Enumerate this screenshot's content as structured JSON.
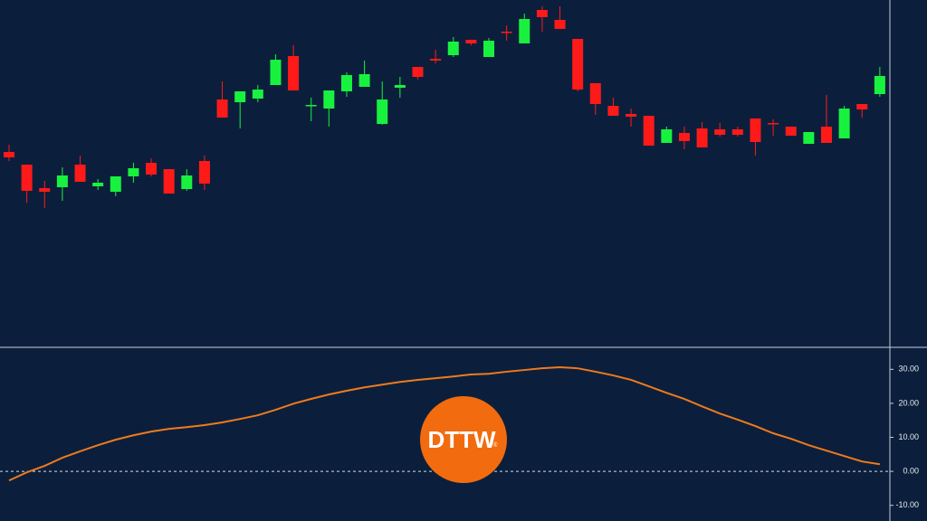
{
  "chart_data": [
    {
      "type": "candlestick",
      "categories": [
        null,
        null,
        null,
        null,
        null,
        null,
        null,
        null,
        null,
        null,
        null,
        null,
        null,
        null,
        null,
        null,
        null,
        null,
        null,
        null,
        null,
        null,
        null,
        null,
        null,
        null,
        null,
        null,
        null,
        null,
        null,
        null,
        null,
        null,
        null,
        null,
        null,
        null,
        null,
        null,
        null,
        null,
        null,
        null,
        null,
        null,
        null,
        null,
        null,
        null
      ],
      "open": [
        232,
        218,
        192,
        193,
        218,
        194,
        188,
        205,
        220,
        213,
        191,
        222,
        290,
        287,
        291,
        306,
        338,
        283,
        280,
        299,
        304,
        263,
        303,
        326,
        335,
        339,
        356,
        337,
        365,
        352,
        389,
        378,
        357,
        308,
        283,
        274,
        272,
        242,
        253,
        258,
        257,
        257,
        269,
        264,
        260,
        241,
        260,
        247,
        285,
        296
      ],
      "high": [
        240,
        218,
        200,
        215,
        228,
        202,
        205,
        220,
        225,
        213,
        213,
        228,
        310,
        299,
        306,
        340,
        350,
        292,
        300,
        320,
        333,
        310,
        315,
        326,
        345,
        359,
        356,
        358,
        372,
        385,
        393,
        393,
        357,
        308,
        292,
        280,
        272,
        260,
        260,
        265,
        264,
        260,
        269,
        268,
        260,
        254,
        295,
        283,
        285,
        326
      ],
      "low": [
        222,
        176,
        170,
        178,
        199,
        190,
        183,
        198,
        205,
        186,
        189,
        190,
        270,
        258,
        287,
        306,
        300,
        266,
        260,
        293,
        304,
        262,
        292,
        312,
        330,
        337,
        350,
        337,
        355,
        352,
        365,
        368,
        299,
        273,
        272,
        260,
        239,
        242,
        235,
        237,
        249,
        249,
        228,
        250,
        250,
        241,
        242,
        247,
        270,
        293
      ],
      "close": [
        226,
        189,
        188,
        206,
        199,
        198,
        205,
        214,
        207,
        186,
        206,
        197,
        270,
        299,
        301,
        334,
        300,
        284,
        300,
        317,
        318,
        290,
        306,
        315,
        333,
        354,
        352,
        355,
        364,
        379,
        381,
        368,
        301,
        285,
        272,
        271,
        239,
        257,
        244,
        237,
        251,
        251,
        243,
        263,
        250,
        254,
        242,
        280,
        279,
        316
      ],
      "up_color": "#18f23f",
      "down_color": "#ff1a1a",
      "ylim": [
        17,
        400
      ]
    },
    {
      "type": "line",
      "categories": [
        null,
        null,
        null,
        null,
        null,
        null,
        null,
        null,
        null,
        null,
        null,
        null,
        null,
        null,
        null,
        null,
        null,
        null,
        null,
        null,
        null,
        null,
        null,
        null,
        null,
        null,
        null,
        null,
        null,
        null,
        null,
        null,
        null,
        null,
        null,
        null,
        null,
        null,
        null,
        null,
        null,
        null,
        null,
        null,
        null,
        null,
        null,
        null,
        null,
        null
      ],
      "values": [
        -2.7,
        -0.3,
        1.6,
        4.0,
        5.9,
        7.7,
        9.3,
        10.6,
        11.7,
        12.5,
        13.0,
        13.6,
        14.4,
        15.4,
        16.5,
        18.1,
        19.9,
        21.3,
        22.6,
        23.7,
        24.7,
        25.5,
        26.3,
        26.9,
        27.4,
        27.9,
        28.5,
        28.7,
        29.3,
        29.8,
        30.3,
        30.6,
        30.3,
        29.3,
        28.2,
        26.9,
        25.0,
        23.1,
        21.3,
        19.1,
        17.0,
        15.2,
        13.3,
        11.2,
        9.6,
        7.7,
        6.1,
        4.5,
        2.9,
        2.1
      ],
      "color": "#f07a1c",
      "ylim": [
        -14.6,
        36.2
      ],
      "yticks": [
        {
          "value": 30,
          "label": "30.00"
        },
        {
          "value": 20,
          "label": "20.00"
        },
        {
          "value": 10,
          "label": "10.00"
        },
        {
          "value": 0,
          "label": "0.00"
        },
        {
          "value": -10,
          "label": "-10.00"
        }
      ],
      "zero_line": true
    }
  ],
  "watermark": {
    "text": "DTTW",
    "mark": "®"
  }
}
